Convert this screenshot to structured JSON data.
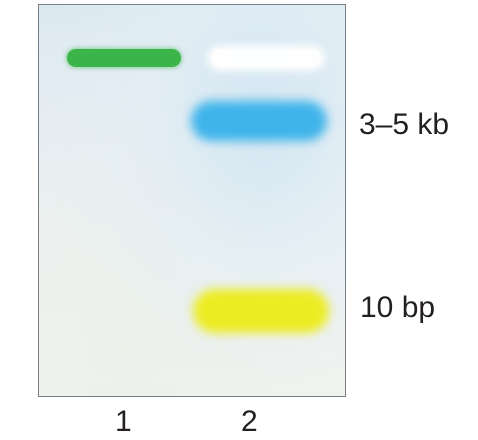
{
  "band_labels": {
    "upper": "3–5 kb",
    "lower": "10 bp"
  },
  "lane_labels": [
    "1",
    "2"
  ],
  "colors": {
    "lane1_band": "#3bb44a",
    "lane2_well": "#ffffff",
    "lane2_upper_band": "#3fb4ea",
    "lane2_lower_band": "#ecec22",
    "label_text": "#231f20",
    "gel_border": "#7a7f86"
  }
}
